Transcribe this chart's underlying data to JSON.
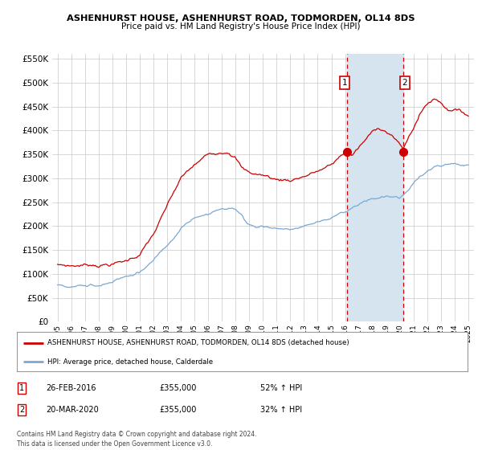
{
  "title": "ASHENHURST HOUSE, ASHENHURST ROAD, TODMORDEN, OL14 8DS",
  "subtitle": "Price paid vs. HM Land Registry's House Price Index (HPI)",
  "legend_line1": "ASHENHURST HOUSE, ASHENHURST ROAD, TODMORDEN, OL14 8DS (detached house)",
  "legend_line2": "HPI: Average price, detached house, Calderdale",
  "footnote": "Contains HM Land Registry data © Crown copyright and database right 2024.\nThis data is licensed under the Open Government Licence v3.0.",
  "annotation1_date": "26-FEB-2016",
  "annotation1_price": "£355,000",
  "annotation1_hpi": "52% ↑ HPI",
  "annotation2_date": "20-MAR-2020",
  "annotation2_price": "£355,000",
  "annotation2_hpi": "32% ↑ HPI",
  "red_color": "#cc0000",
  "blue_color": "#7aa8d2",
  "shaded_color": "#d6e4f0",
  "grid_color": "#c8c8c8",
  "ylim": [
    0,
    560000
  ],
  "yticks": [
    0,
    50000,
    100000,
    150000,
    200000,
    250000,
    300000,
    350000,
    400000,
    450000,
    500000,
    550000
  ],
  "sale1_x": 2016.12,
  "sale1_y": 355000,
  "sale2_x": 2020.22,
  "sale2_y": 355000,
  "shade_start": 2016.12,
  "shade_end": 2020.22,
  "xlim_left": 1994.6,
  "xlim_right": 2025.4
}
